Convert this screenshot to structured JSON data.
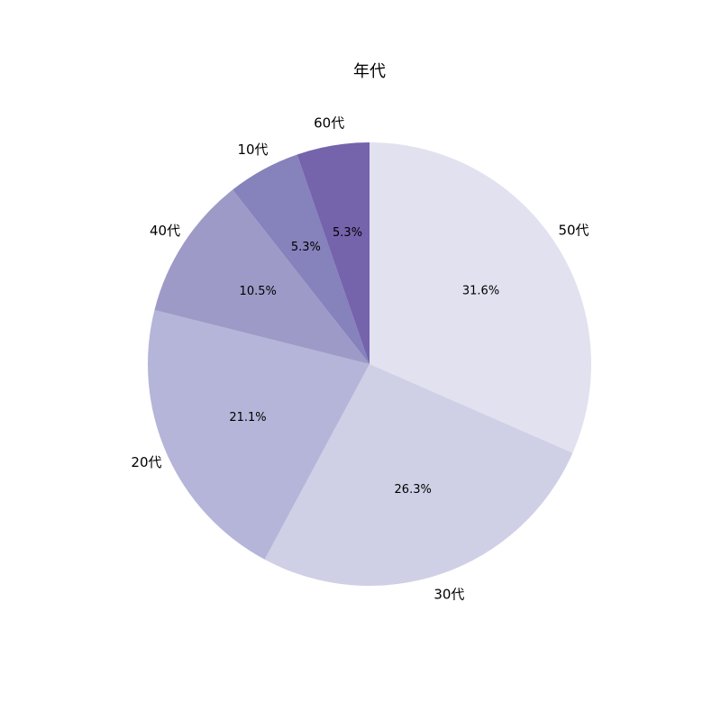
{
  "chart_data": {
    "type": "pie",
    "title": "年代",
    "categories": [
      "50代",
      "30代",
      "20代",
      "40代",
      "10代",
      "60代"
    ],
    "values": [
      31.6,
      26.3,
      21.1,
      10.5,
      5.3,
      5.3
    ],
    "value_labels": [
      "31.6%",
      "26.3%",
      "21.1%",
      "10.5%",
      "5.3%",
      "5.3%"
    ],
    "colors": [
      "#e2e1ef",
      "#cfcfe6",
      "#b5b5d9",
      "#9e9ac8",
      "#8582bc",
      "#7563ac"
    ]
  }
}
